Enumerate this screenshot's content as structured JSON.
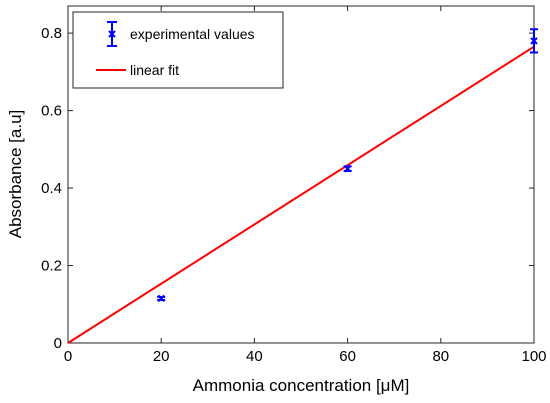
{
  "chart_data": {
    "type": "scatter",
    "xlabel": "Ammonia concentration [μM]",
    "ylabel": "Absorbance [a.u]",
    "xlim": [
      0,
      100
    ],
    "ylim": [
      0,
      0.87
    ],
    "xticks": [
      0,
      20,
      40,
      60,
      80,
      100
    ],
    "yticks": [
      0,
      0.2,
      0.4,
      0.6,
      0.8
    ],
    "xtick_labels": [
      "0",
      "20",
      "40",
      "60",
      "80",
      "100"
    ],
    "ytick_labels": [
      "0",
      "0.2",
      "0.4",
      "0.6",
      "0.8"
    ],
    "grid": false,
    "legend_position": "top-left",
    "series": [
      {
        "name": "experimental values",
        "kind": "errorbar",
        "color": "#0000ff",
        "points": [
          {
            "x": 20,
            "y": 0.115,
            "err": 0.004
          },
          {
            "x": 60,
            "y": 0.45,
            "err": 0.006
          },
          {
            "x": 100,
            "y": 0.78,
            "err": 0.03
          }
        ]
      },
      {
        "name": "linear fit",
        "kind": "line",
        "color": "#ff0000",
        "x": [
          0,
          100
        ],
        "y": [
          0,
          0.765
        ]
      }
    ]
  }
}
